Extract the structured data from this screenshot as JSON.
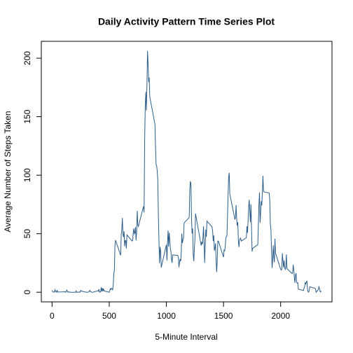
{
  "chart_data": {
    "type": "line",
    "title": "Daily Activity Pattern Time Series Plot",
    "x_label": "5-Minute Interval",
    "y_label": "Average Number of Steps Taken",
    "xlim": [
      -94.2,
      2449.2
    ],
    "ylim": [
      -8.25,
      214.42
    ],
    "xticks": [
      0,
      500,
      1000,
      1500,
      2000
    ],
    "yticks": [
      0,
      50,
      100,
      150,
      200
    ],
    "x": [
      0,
      5,
      10,
      15,
      20,
      25,
      30,
      35,
      40,
      45,
      50,
      55,
      100,
      105,
      110,
      115,
      120,
      125,
      130,
      135,
      140,
      145,
      150,
      155,
      200,
      205,
      210,
      215,
      220,
      225,
      230,
      235,
      240,
      245,
      250,
      255,
      300,
      305,
      310,
      315,
      320,
      325,
      330,
      335,
      340,
      345,
      350,
      355,
      400,
      405,
      410,
      415,
      420,
      425,
      430,
      435,
      440,
      445,
      450,
      455,
      500,
      505,
      510,
      515,
      520,
      525,
      530,
      535,
      540,
      545,
      550,
      555,
      600,
      605,
      610,
      615,
      620,
      625,
      630,
      635,
      640,
      645,
      650,
      655,
      700,
      705,
      710,
      715,
      720,
      725,
      730,
      735,
      740,
      745,
      750,
      755,
      800,
      805,
      810,
      815,
      820,
      825,
      830,
      835,
      840,
      845,
      850,
      855,
      900,
      905,
      910,
      915,
      920,
      925,
      930,
      935,
      940,
      945,
      950,
      955,
      1000,
      1005,
      1010,
      1015,
      1020,
      1025,
      1030,
      1035,
      1040,
      1045,
      1050,
      1055,
      1100,
      1105,
      1110,
      1115,
      1120,
      1125,
      1130,
      1135,
      1140,
      1145,
      1150,
      1155,
      1200,
      1205,
      1210,
      1215,
      1220,
      1225,
      1230,
      1235,
      1240,
      1245,
      1250,
      1255,
      1300,
      1305,
      1310,
      1315,
      1320,
      1325,
      1330,
      1335,
      1340,
      1345,
      1350,
      1355,
      1400,
      1405,
      1410,
      1415,
      1420,
      1425,
      1430,
      1435,
      1440,
      1445,
      1450,
      1455,
      1500,
      1505,
      1510,
      1515,
      1520,
      1525,
      1530,
      1535,
      1540,
      1545,
      1550,
      1555,
      1600,
      1605,
      1610,
      1615,
      1620,
      1625,
      1630,
      1635,
      1640,
      1645,
      1650,
      1655,
      1700,
      1705,
      1710,
      1715,
      1720,
      1725,
      1730,
      1735,
      1740,
      1745,
      1750,
      1755,
      1800,
      1805,
      1810,
      1815,
      1820,
      1825,
      1830,
      1835,
      1840,
      1845,
      1850,
      1855,
      1900,
      1905,
      1910,
      1915,
      1920,
      1925,
      1930,
      1935,
      1940,
      1945,
      1950,
      1955,
      2000,
      2005,
      2010,
      2015,
      2020,
      2025,
      2030,
      2035,
      2040,
      2045,
      2050,
      2055,
      2100,
      2105,
      2110,
      2115,
      2120,
      2125,
      2130,
      2135,
      2140,
      2145,
      2150,
      2155,
      2200,
      2205,
      2210,
      2215,
      2220,
      2225,
      2230,
      2235,
      2240,
      2245,
      2250,
      2255,
      2300,
      2305,
      2310,
      2315,
      2320,
      2325,
      2330,
      2335,
      2340,
      2345,
      2350,
      2355
    ],
    "series": [
      {
        "name": "steps",
        "color": "#2e5f8a",
        "values": [
          1.72,
          0.34,
          0.13,
          0.15,
          0.08,
          2.09,
          0.53,
          0.87,
          0,
          1.47,
          0.3,
          0.13,
          0.32,
          0.68,
          0.15,
          0.34,
          0,
          1.11,
          1.83,
          0.17,
          0.17,
          0.38,
          0.26,
          0,
          0,
          0,
          1.13,
          0,
          0,
          0.13,
          0,
          0.23,
          0,
          0,
          1.55,
          0.94,
          0,
          0,
          0,
          0,
          0.21,
          0.62,
          1.62,
          0.58,
          0.49,
          0.08,
          0,
          0,
          1.19,
          0.94,
          2.57,
          0,
          0.34,
          0.36,
          4.11,
          0.66,
          3.49,
          0.83,
          3.11,
          1.11,
          0,
          1.57,
          3.0,
          2.25,
          3.32,
          2.96,
          2.09,
          6.06,
          16.0,
          18.3,
          39.5,
          44.5,
          31.5,
          49.3,
          53.8,
          63.5,
          50.0,
          47.1,
          52.2,
          39.3,
          44.0,
          44.2,
          37.4,
          49.0,
          43.8,
          44.4,
          50.5,
          54.5,
          49.9,
          51.0,
          55.7,
          44.3,
          52.3,
          69.5,
          57.8,
          56.2,
          73.4,
          68.2,
          129.4,
          157.5,
          171.2,
          155.4,
          177.3,
          206.2,
          195.9,
          179.6,
          183.4,
          167.0,
          143.5,
          124.0,
          109.1,
          108.1,
          103.7,
          95.97,
          66.2,
          45.2,
          24.8,
          38.8,
          35.0,
          21.1,
          40.6,
          26.98,
          42.4,
          52.7,
          38.9,
          50.8,
          44.3,
          37.4,
          34.7,
          28.3,
          25.1,
          31.9,
          31.4,
          29.7,
          21.3,
          25.5,
          28.4,
          26.5,
          33.4,
          50.0,
          42.0,
          44.6,
          46.0,
          59.2,
          63.9,
          87.7,
          94.8,
          92.8,
          63.4,
          50.2,
          54.5,
          32.4,
          26.5,
          37.7,
          45.1,
          67.3,
          42.3,
          39.9,
          43.3,
          40.98,
          46.2,
          56.4,
          42.8,
          25.1,
          40.0,
          53.5,
          47.3,
          60.8,
          55.8,
          51.96,
          43.6,
          48.7,
          35.5,
          37.5,
          41.8,
          27.5,
          17.1,
          26.1,
          43.6,
          43.8,
          30.0,
          36.1,
          35.5,
          38.8,
          45.96,
          47.8,
          48.1,
          65.3,
          82.9,
          98.7,
          102.1,
          83.96,
          62.1,
          64.1,
          74.5,
          63.2,
          56.9,
          59.8,
          43.9,
          38.6,
          44.7,
          45.5,
          46.2,
          43.7,
          46.6,
          56.3,
          50.7,
          61.2,
          72.7,
          78.9,
          68.9,
          59.7,
          75.1,
          56.5,
          34.8,
          37.5,
          40.7,
          58.0,
          74.7,
          85.3,
          59.3,
          67.8,
          77.7,
          74.2,
          85.3,
          99.5,
          86.6,
          85.6,
          84.9,
          77.8,
          58.0,
          53.4,
          36.3,
          20.7,
          27.4,
          40.0,
          30.2,
          25.5,
          45.7,
          33.5,
          19.6,
          19.0,
          19.3,
          33.3,
          26.8,
          21.2,
          27.3,
          21.3,
          19.5,
          21.3,
          32.3,
          20.2,
          15.9,
          17.2,
          23.5,
          19.2,
          12.5,
          8.0,
          14.7,
          16.3,
          8.7,
          7.8,
          8.1,
          2.6,
          1.5,
          3.7,
          4.8,
          8.5,
          7.1,
          8.7,
          9.8,
          2.2,
          0.3,
          0.1,
          1.6,
          4.6,
          3.3,
          2.8,
          0,
          0.8,
          0.96,
          1.6,
          2.6,
          4.7,
          3.3,
          0.6,
          0.2,
          1.1
        ]
      }
    ]
  }
}
